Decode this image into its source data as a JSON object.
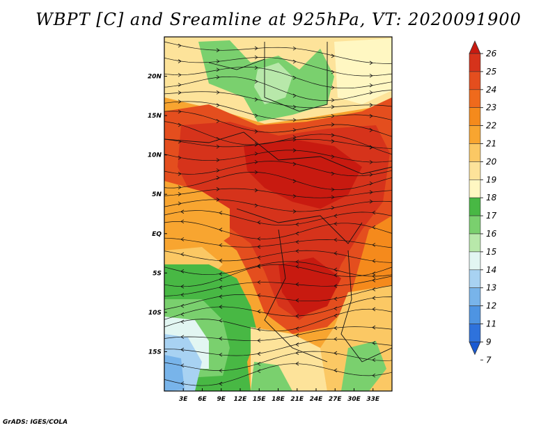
{
  "title": "WBPT [C] and Sreamline at 925hPa, VT: 2020091900",
  "footer": "GrADS: IGES/COLA",
  "map": {
    "lon_range": [
      0,
      36
    ],
    "lat_range": [
      -20,
      25
    ],
    "x_ticks": [
      "3E",
      "6E",
      "9E",
      "12E",
      "15E",
      "18E",
      "21E",
      "24E",
      "27E",
      "30E",
      "33E"
    ],
    "x_tick_values": [
      3,
      6,
      9,
      12,
      15,
      18,
      21,
      24,
      27,
      30,
      33
    ],
    "y_ticks": [
      "20N",
      "15N",
      "10N",
      "5N",
      "EQ",
      "5S",
      "10S",
      "15S"
    ],
    "y_tick_values": [
      20,
      15,
      10,
      5,
      0,
      -5,
      -10,
      -15
    ]
  },
  "colorbar": {
    "labels": [
      "26",
      "25",
      "24",
      "23",
      "22",
      "21",
      "20",
      "19",
      "18",
      "17",
      "16",
      "15",
      "14",
      "13",
      "12",
      "11",
      "9",
      "7"
    ],
    "colors": [
      "#c81a10",
      "#d6331b",
      "#e44e1e",
      "#ef6a1c",
      "#f58a1c",
      "#f8a530",
      "#fbc864",
      "#fde39a",
      "#fff7c2",
      "#48b844",
      "#7ad06e",
      "#b8e8aa",
      "#e2f6f2",
      "#a8d2f2",
      "#78b4ea",
      "#4e94e2",
      "#2e72dc",
      "#1a5ad2"
    ]
  }
}
